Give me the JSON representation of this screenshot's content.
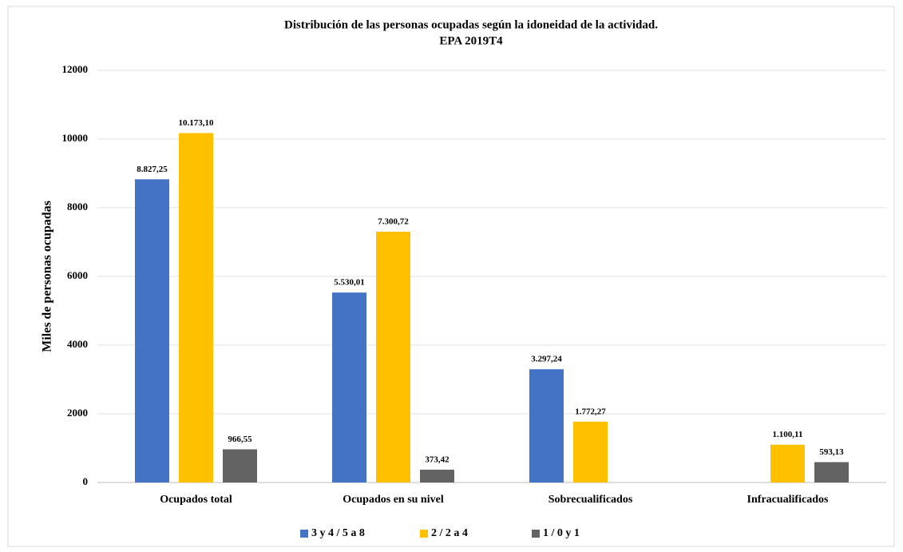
{
  "chart_data": {
    "type": "bar",
    "title": "Distribución de las personas ocupadas según la idoneidad de la actividad.",
    "subtitle": "EPA 2019T4",
    "y_label": "Miles de personas ocupadas",
    "categories": [
      "Ocupados total",
      "Ocupados en su nivel",
      "Sobrecualificados",
      "Infracualificados"
    ],
    "series": [
      {
        "name": "3 y 4 / 5 a 8",
        "color": "#4472c4",
        "values": [
          8827.25,
          5530.01,
          3297.24,
          null
        ],
        "value_labels": [
          "8.827,25",
          "5.530,01",
          "3.297,24",
          null
        ]
      },
      {
        "name": "2 / 2 a 4",
        "color": "#ffc000",
        "values": [
          10173.1,
          7300.72,
          1772.27,
          1100.11
        ],
        "value_labels": [
          "10.173,10",
          "7.300,72",
          "1.772,27",
          "1.100,11"
        ]
      },
      {
        "name": "1 / 0 y 1",
        "color": "#636363",
        "values": [
          966.55,
          373.42,
          null,
          593.13
        ],
        "value_labels": [
          "966,55",
          "373,42",
          null,
          "593,13"
        ]
      }
    ],
    "ylim": [
      0,
      12000
    ],
    "yticks": [
      0,
      2000,
      4000,
      6000,
      8000,
      10000,
      12000
    ],
    "grid": true,
    "legend": "bottom"
  }
}
